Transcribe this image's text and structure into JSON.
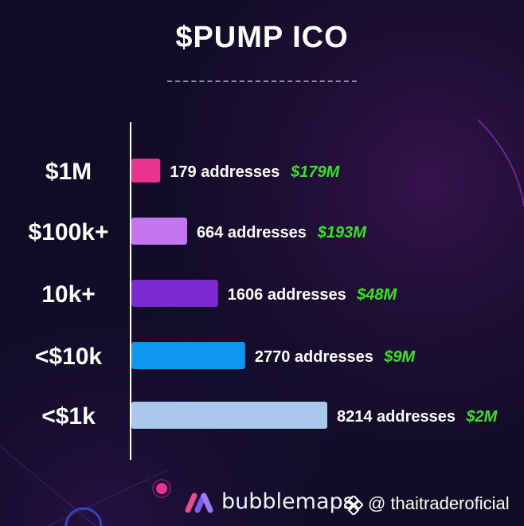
{
  "title": "$PUMP ICO",
  "brand": {
    "name": "bubblemaps"
  },
  "watermark": {
    "handle": "@ thaitraderoficial"
  },
  "colors": {
    "background": "#100c26",
    "axis": "#ffffff",
    "value_text": "#39e31f",
    "label_text": "#ffffff",
    "bars": [
      "#e8348e",
      "#c475f0",
      "#7b2bd0",
      "#0f96f0",
      "#aac8ec"
    ]
  },
  "chart_data": {
    "type": "bar",
    "orientation": "horizontal",
    "title": "$PUMP ICO",
    "categories": [
      "$1M",
      "$100k+",
      "10k+",
      "<$10k",
      "<$1k"
    ],
    "series": [
      {
        "values": [
          179,
          664,
          1606,
          2770,
          8214
        ]
      }
    ],
    "data_labels": [
      "179 addresses",
      "664 addresses",
      "1606 addresses",
      "2770 addresses",
      "8214 addresses"
    ],
    "value_labels": [
      "$179M",
      "$193M",
      "$48M",
      "$9M",
      "$2M"
    ],
    "grid": false,
    "legend": "none"
  }
}
